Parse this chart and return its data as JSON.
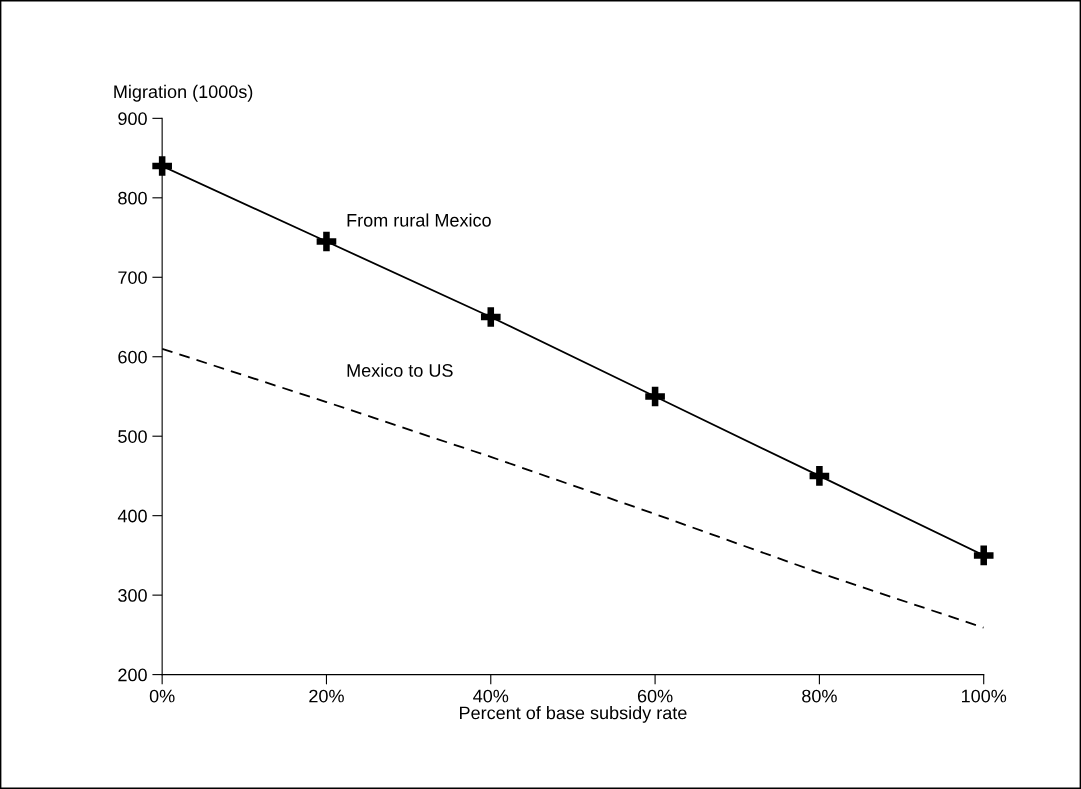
{
  "chart_data": {
    "type": "line",
    "xlabel": "Percent of base subsidy rate",
    "ylabel": "Migration (1000s)",
    "x": [
      0,
      20,
      40,
      60,
      80,
      100
    ],
    "xlim": [
      0,
      100
    ],
    "xticks": [
      {
        "value": 0,
        "label": "0%"
      },
      {
        "value": 20,
        "label": "20%"
      },
      {
        "value": 40,
        "label": "40%"
      },
      {
        "value": 60,
        "label": "60%"
      },
      {
        "value": 80,
        "label": "80%"
      },
      {
        "value": 100,
        "label": "100%"
      }
    ],
    "ylim": [
      200,
      900
    ],
    "yticks": [
      200,
      300,
      400,
      500,
      600,
      700,
      800,
      900
    ],
    "grid": false,
    "legend": false,
    "series": [
      {
        "name": "From rural Mexico",
        "color": "#000000",
        "values": [
          840,
          745,
          650,
          550,
          450,
          350
        ],
        "marker": "cross",
        "line_style": "solid"
      },
      {
        "name": "Mexico to US",
        "color": "#000000",
        "values": [
          610,
          543,
          474,
          402,
          328,
          259
        ],
        "marker": "none",
        "line_style": "dashed"
      }
    ]
  }
}
